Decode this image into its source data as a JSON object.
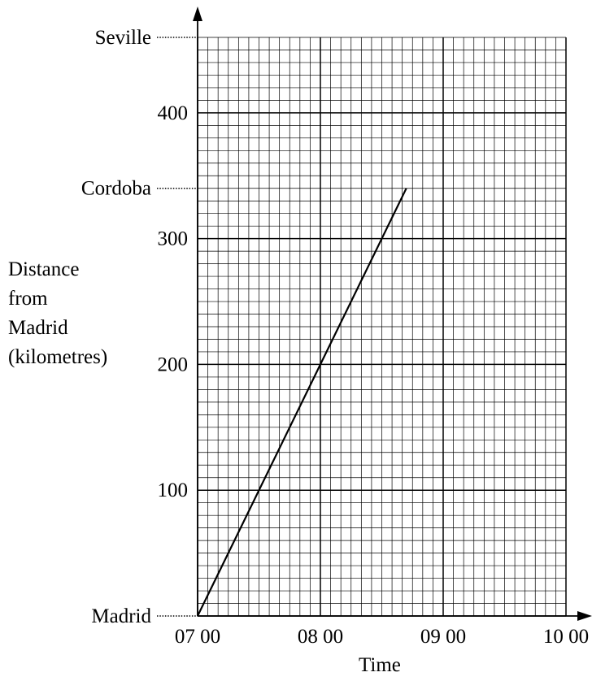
{
  "chart_data": {
    "type": "line",
    "x_label": "Time",
    "y_label_lines": [
      "Distance",
      "from",
      "Madrid",
      "(kilometres)"
    ],
    "x_ticks": [
      "07 00",
      "08 00",
      "09 00",
      "10 00"
    ],
    "x_range_hours": [
      7,
      10
    ],
    "y_range": [
      0,
      460
    ],
    "y_ticks": [
      100,
      200,
      300,
      400
    ],
    "places": [
      {
        "name": "Madrid",
        "distance": 0
      },
      {
        "name": "Cordoba",
        "distance": 340
      },
      {
        "name": "Seville",
        "distance": 460
      }
    ],
    "series": [
      {
        "points": [
          [
            7.0,
            0
          ],
          [
            8.0,
            200
          ],
          [
            8.7,
            340
          ]
        ]
      }
    ],
    "grid": true
  }
}
